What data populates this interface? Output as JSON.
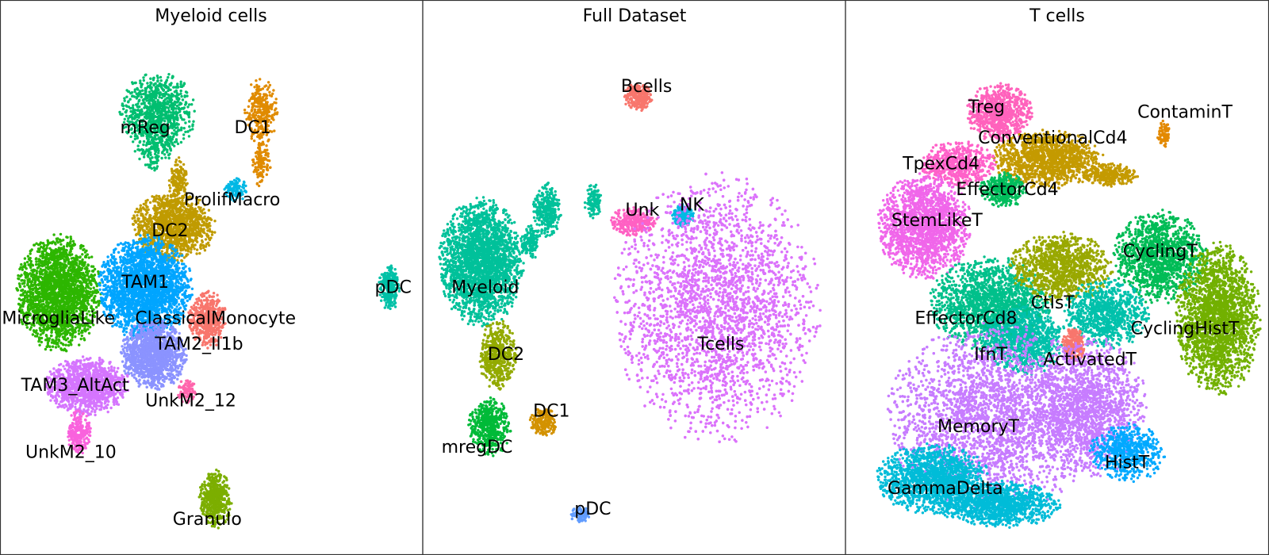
{
  "chart_data": [
    {
      "type": "scatter",
      "title": "Myeloid cells",
      "xlim": [
        0,
        100
      ],
      "ylim": [
        0,
        100
      ],
      "clusters": [
        {
          "name": "mReg",
          "color": "#00BE70",
          "blobs": [
            [
              37,
              85,
              8,
              7,
              900
            ],
            [
              36,
              78,
              4,
              4,
              150
            ]
          ],
          "label": [
            34,
            82
          ]
        },
        {
          "name": "DC1",
          "color": "#E08B00",
          "blobs": [
            [
              62,
              85,
              3.5,
              6,
              300
            ],
            [
              62,
              75,
              2,
              4,
              120
            ]
          ],
          "label": [
            60,
            82
          ]
        },
        {
          "name": "ProlifMacro",
          "color": "#00B8E5",
          "blobs": [
            [
              56,
              70,
              2.5,
              2,
              120
            ]
          ],
          "label": [
            55,
            68
          ]
        },
        {
          "name": "DC2",
          "color": "#C09B00",
          "blobs": [
            [
              41,
              63,
              9,
              6,
              1300
            ],
            [
              42,
              72,
              2,
              4,
              150
            ]
          ],
          "label": [
            40,
            62
          ]
        },
        {
          "name": "MicrogliaLike",
          "color": "#2DB600",
          "blobs": [
            [
              13,
              50,
              9,
              10,
              2200
            ]
          ],
          "label": [
            13,
            45
          ]
        },
        {
          "name": "TAM1",
          "color": "#00A5FF",
          "blobs": [
            [
              34,
              51,
              10,
              9,
              2500
            ]
          ],
          "label": [
            34,
            52
          ]
        },
        {
          "name": "ClassicalMonocyte",
          "color": "#F8766D",
          "blobs": [
            [
              49,
              45,
              4,
              5,
              500
            ]
          ],
          "label": [
            51,
            45
          ]
        },
        {
          "name": "TAM2_Il1b",
          "color": "#8B93FF",
          "blobs": [
            [
              36,
              38,
              7,
              6,
              1300
            ]
          ],
          "label": [
            47,
            40
          ]
        },
        {
          "name": "TAM3_AltAct",
          "color": "#D575FE",
          "blobs": [
            [
              20,
              32,
              9,
              5,
              1200
            ]
          ],
          "label": [
            17,
            32
          ]
        },
        {
          "name": "UnkM2_12",
          "color": "#FF65AC",
          "blobs": [
            [
              44,
              31,
              2,
              2,
              100
            ]
          ],
          "label": [
            45,
            29
          ]
        },
        {
          "name": "UnkM2_10",
          "color": "#F962DD",
          "blobs": [
            [
              18,
              23,
              2.5,
              4,
              250
            ]
          ],
          "label": [
            16,
            19
          ]
        },
        {
          "name": "pDC",
          "color": "#00C1A7",
          "blobs": [
            [
              93,
              51,
              2.2,
              4,
              250
            ]
          ],
          "label": [
            94,
            51
          ]
        },
        {
          "name": "Granulo",
          "color": "#7CAE00",
          "blobs": [
            [
              51,
              10,
              3.5,
              5,
              500
            ]
          ],
          "label": [
            49,
            6
          ]
        }
      ]
    },
    {
      "type": "scatter",
      "title": "Full Dataset",
      "xlim": [
        0,
        100
      ],
      "ylim": [
        0,
        100
      ],
      "clusters": [
        {
          "name": "Bcells",
          "color": "#F8766D",
          "blobs": [
            [
              51,
              88,
              3,
              2.5,
              250
            ]
          ],
          "label": [
            53,
            90
          ]
        },
        {
          "name": "Unk",
          "color": "#FF61C3",
          "blobs": [
            [
              50,
              64,
              5,
              2.5,
              300
            ]
          ],
          "label": [
            52,
            66
          ]
        },
        {
          "name": "NK",
          "color": "#00B9E3",
          "blobs": [
            [
              62,
              65,
              2.5,
              2,
              150
            ]
          ],
          "label": [
            64,
            67
          ]
        },
        {
          "name": "Myeloid",
          "color": "#00C19A",
          "blobs": [
            [
              13,
              56,
              9,
              11,
              2500
            ],
            [
              29,
              66,
              3,
              5,
              300
            ],
            [
              40,
              68,
              2,
              3,
              120
            ],
            [
              25,
              60,
              2,
              3,
              150
            ]
          ],
          "label": [
            14,
            51
          ]
        },
        {
          "name": "DC2",
          "color": "#93AA00",
          "blobs": [
            [
              17,
              38,
              4,
              6,
              500
            ]
          ],
          "label": [
            19,
            38
          ]
        },
        {
          "name": "mregDC",
          "color": "#00BA38",
          "blobs": [
            [
              15,
              24,
              4.5,
              5,
              500
            ]
          ],
          "label": [
            12,
            20
          ]
        },
        {
          "name": "DC1",
          "color": "#D39200",
          "blobs": [
            [
              28,
              25,
              3,
              2.5,
              200
            ]
          ],
          "label": [
            30,
            27
          ]
        },
        {
          "name": "pDC",
          "color": "#619CFF",
          "blobs": [
            [
              37,
              7,
              2,
              1.5,
              80
            ]
          ],
          "label": [
            40,
            8
          ]
        },
        {
          "name": "Tcells",
          "color": "#DB72FB",
          "blobs": [
            [
              70,
              47,
              22,
              23,
              6000
            ]
          ],
          "label": [
            71,
            40
          ]
        }
      ]
    },
    {
      "type": "scatter",
      "title": "T cells",
      "xlim": [
        0,
        100
      ],
      "ylim": [
        0,
        100
      ],
      "clusters": [
        {
          "name": "ContaminT",
          "color": "#E38900",
          "blobs": [
            [
              76,
              81,
              1.5,
              2.5,
              80
            ]
          ],
          "label": [
            81,
            85
          ]
        },
        {
          "name": "Treg",
          "color": "#FF62BC",
          "blobs": [
            [
              36,
              85,
              7,
              5,
              800
            ]
          ],
          "label": [
            33,
            86
          ]
        },
        {
          "name": "ConventionalCd4",
          "color": "#C49A00",
          "blobs": [
            [
              48,
              76,
              12,
              5,
              1300
            ],
            [
              63,
              73,
              6,
              2,
              300
            ]
          ],
          "label": [
            49,
            80
          ]
        },
        {
          "name": "TpexCd4",
          "color": "#FF61C9",
          "blobs": [
            [
              26,
              75,
              8,
              4,
              600
            ]
          ],
          "label": [
            22,
            75
          ]
        },
        {
          "name": "EffectorCd4",
          "color": "#00BD5C",
          "blobs": [
            [
              37,
              70,
              5,
              3,
              400
            ]
          ],
          "label": [
            38,
            70
          ]
        },
        {
          "name": "StemLikeT",
          "color": "#F066EA",
          "blobs": [
            [
              18,
              63,
              10,
              9,
              1800
            ]
          ],
          "label": [
            21,
            64
          ]
        },
        {
          "name": "CyclingT",
          "color": "#00BC56",
          "blobs": [
            [
              75,
              57,
              10,
              8,
              1300
            ]
          ],
          "label": [
            75,
            58
          ]
        },
        {
          "name": "CyclingHistT",
          "color": "#72B000",
          "blobs": [
            [
              89,
              45,
              9,
              13,
              2200
            ]
          ],
          "label": [
            81,
            43
          ]
        },
        {
          "name": "EffectorCd8",
          "color": "#00C08B",
          "blobs": [
            [
              34,
              48,
              13,
              8,
              1700
            ]
          ],
          "label": [
            28,
            45
          ]
        },
        {
          "name": "CtlsT",
          "color": "#99A800",
          "blobs": [
            [
              51,
              55,
              11,
              6,
              1100
            ]
          ],
          "label": [
            49,
            48
          ]
        },
        {
          "name": "IfnT",
          "color": "#00C1AB",
          "blobs": [
            [
              42,
              41,
              9,
              6,
              1000
            ],
            [
              62,
              46,
              9,
              6,
              900
            ]
          ],
          "label": [
            34,
            38
          ]
        },
        {
          "name": "ActivatedT",
          "color": "#F8766D",
          "blobs": [
            [
              54,
              40,
              2.5,
              3,
              250
            ]
          ],
          "label": [
            58,
            37
          ]
        },
        {
          "name": "MemoryT",
          "color": "#C77CFF",
          "blobs": [
            [
              35,
              26,
              23,
              16,
              5200
            ],
            [
              58,
              28,
              12,
              12,
              1500
            ]
          ],
          "label": [
            31,
            24
          ]
        },
        {
          "name": "HistT",
          "color": "#00A9FF",
          "blobs": [
            [
              67,
              19,
              8,
              5,
              600
            ]
          ],
          "label": [
            67,
            17
          ]
        },
        {
          "name": "GammaDelta",
          "color": "#00BCD8",
          "blobs": [
            [
              20,
              14,
              12,
              6,
              1500
            ],
            [
              36,
              9,
              13,
              4,
              1200
            ]
          ],
          "label": [
            23,
            12
          ]
        }
      ]
    }
  ]
}
